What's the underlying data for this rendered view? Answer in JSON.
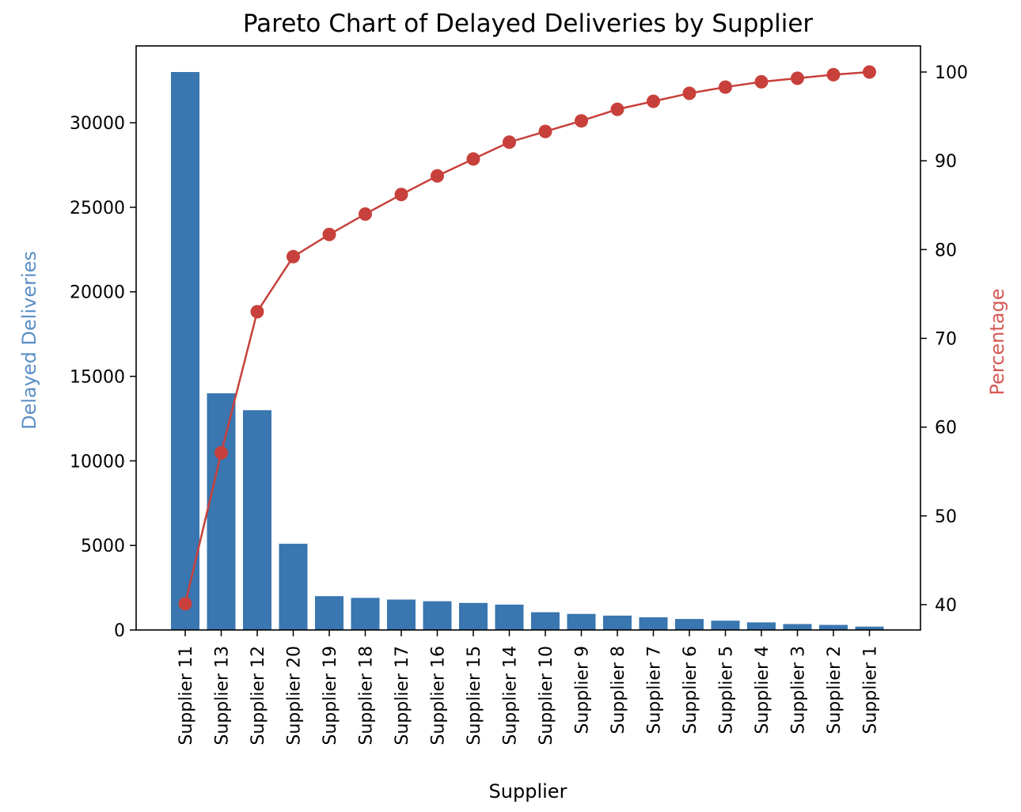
{
  "chart_data": {
    "type": "bar",
    "title": "Pareto Chart of Delayed Deliveries by Supplier",
    "xlabel": "Supplier",
    "ylabel": "Delayed Deliveries",
    "y2label": "Percentage",
    "ylim": [
      0,
      33000
    ],
    "y2lim": [
      40,
      100
    ],
    "yticks": [
      0,
      5000,
      10000,
      15000,
      20000,
      25000,
      30000
    ],
    "y2ticks": [
      40,
      50,
      60,
      70,
      80,
      90,
      100
    ],
    "categories": [
      "Supplier 11",
      "Supplier 13",
      "Supplier 12",
      "Supplier 20",
      "Supplier 19",
      "Supplier 18",
      "Supplier 17",
      "Supplier 16",
      "Supplier 15",
      "Supplier 14",
      "Supplier 10",
      "Supplier 9",
      "Supplier 8",
      "Supplier 7",
      "Supplier 6",
      "Supplier 5",
      "Supplier 4",
      "Supplier 3",
      "Supplier 2",
      "Supplier 1"
    ],
    "series": [
      {
        "type": "bar",
        "axis": "left",
        "values": [
          33000,
          14000,
          13000,
          5100,
          2000,
          1900,
          1800,
          1700,
          1600,
          1500,
          1050,
          950,
          850,
          750,
          650,
          550,
          450,
          350,
          300,
          200
        ]
      },
      {
        "type": "line",
        "axis": "right",
        "values": [
          40.1,
          57.1,
          73.0,
          79.2,
          81.7,
          84.0,
          86.2,
          88.3,
          90.2,
          92.1,
          93.3,
          94.5,
          95.8,
          96.7,
          97.6,
          98.3,
          98.9,
          99.3,
          99.7,
          100.0
        ]
      }
    ],
    "colors": {
      "bar": "#3a76b0",
      "line": "#c8403b",
      "ylabel": "#5b8fc5",
      "y2label": "#d65a55"
    },
    "grid": false,
    "legend": "none"
  }
}
